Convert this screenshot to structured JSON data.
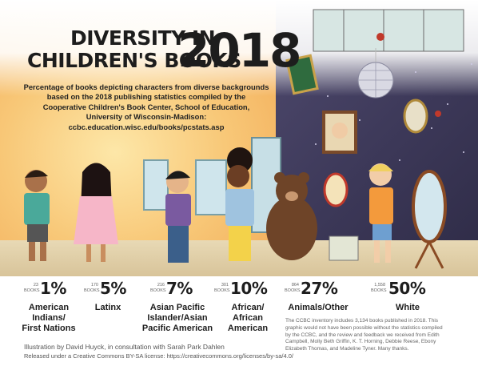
{
  "title": {
    "line1": "DIVERSITY IN",
    "line2": "CHILDREN'S BOOKS",
    "year": "2018"
  },
  "subtitle": {
    "lines": [
      "Percentage of books depicting characters from diverse backgrounds",
      "based on the 2018 publishing statistics compiled by the",
      "Cooperative Children's Book Center, School of Education,",
      "University of Wisconsin-Madison:",
      "ccbc.education.wisc.edu/books/pcstats.asp"
    ]
  },
  "stats": [
    {
      "count": "23",
      "books": "BOOKS",
      "percent": "1%",
      "label_lines": [
        "American",
        "Indians/",
        "First Nations"
      ]
    },
    {
      "count": "170",
      "books": "BOOKS",
      "percent": "5%",
      "label_lines": [
        "Latinx"
      ]
    },
    {
      "count": "216",
      "books": "BOOKS",
      "percent": "7%",
      "label_lines": [
        "Asian Pacific",
        "Islander/Asian",
        "Pacific American"
      ]
    },
    {
      "count": "301",
      "books": "BOOKS",
      "percent": "10%",
      "label_lines": [
        "African/",
        "African",
        "American"
      ]
    },
    {
      "count": "864",
      "books": "BOOKS",
      "percent": "27%",
      "label_lines": [
        "Animals/Other"
      ]
    },
    {
      "count": "1,558",
      "books": "BOOKS",
      "percent": "50%",
      "label_lines": [
        "White"
      ]
    }
  ],
  "note_lines": [
    "The CCBC inventory includes 3,134 books published in 2018. This",
    "graphic would not have been possible without the statistics compiled",
    "by the CCBC, and the review and feedback we received from Edith",
    "Campbell, Molly Beth Griffin, K. T. Horning, Debbie Reese, Ebony",
    "Elizabeth Thomas, and Madeline Tyner. Many thanks."
  ],
  "credits": {
    "line1": "Illustration by David Huyck, in consultation with Sarah Park Dahlen",
    "line2": "Released under a Creative Commons BY-SA license: https://creativecommons.org/licenses/by-sa/4.0/"
  },
  "colors": {
    "warm_wall": "#f3b15e",
    "dark_room": "#3c3858",
    "text": "#1d1d1d"
  }
}
